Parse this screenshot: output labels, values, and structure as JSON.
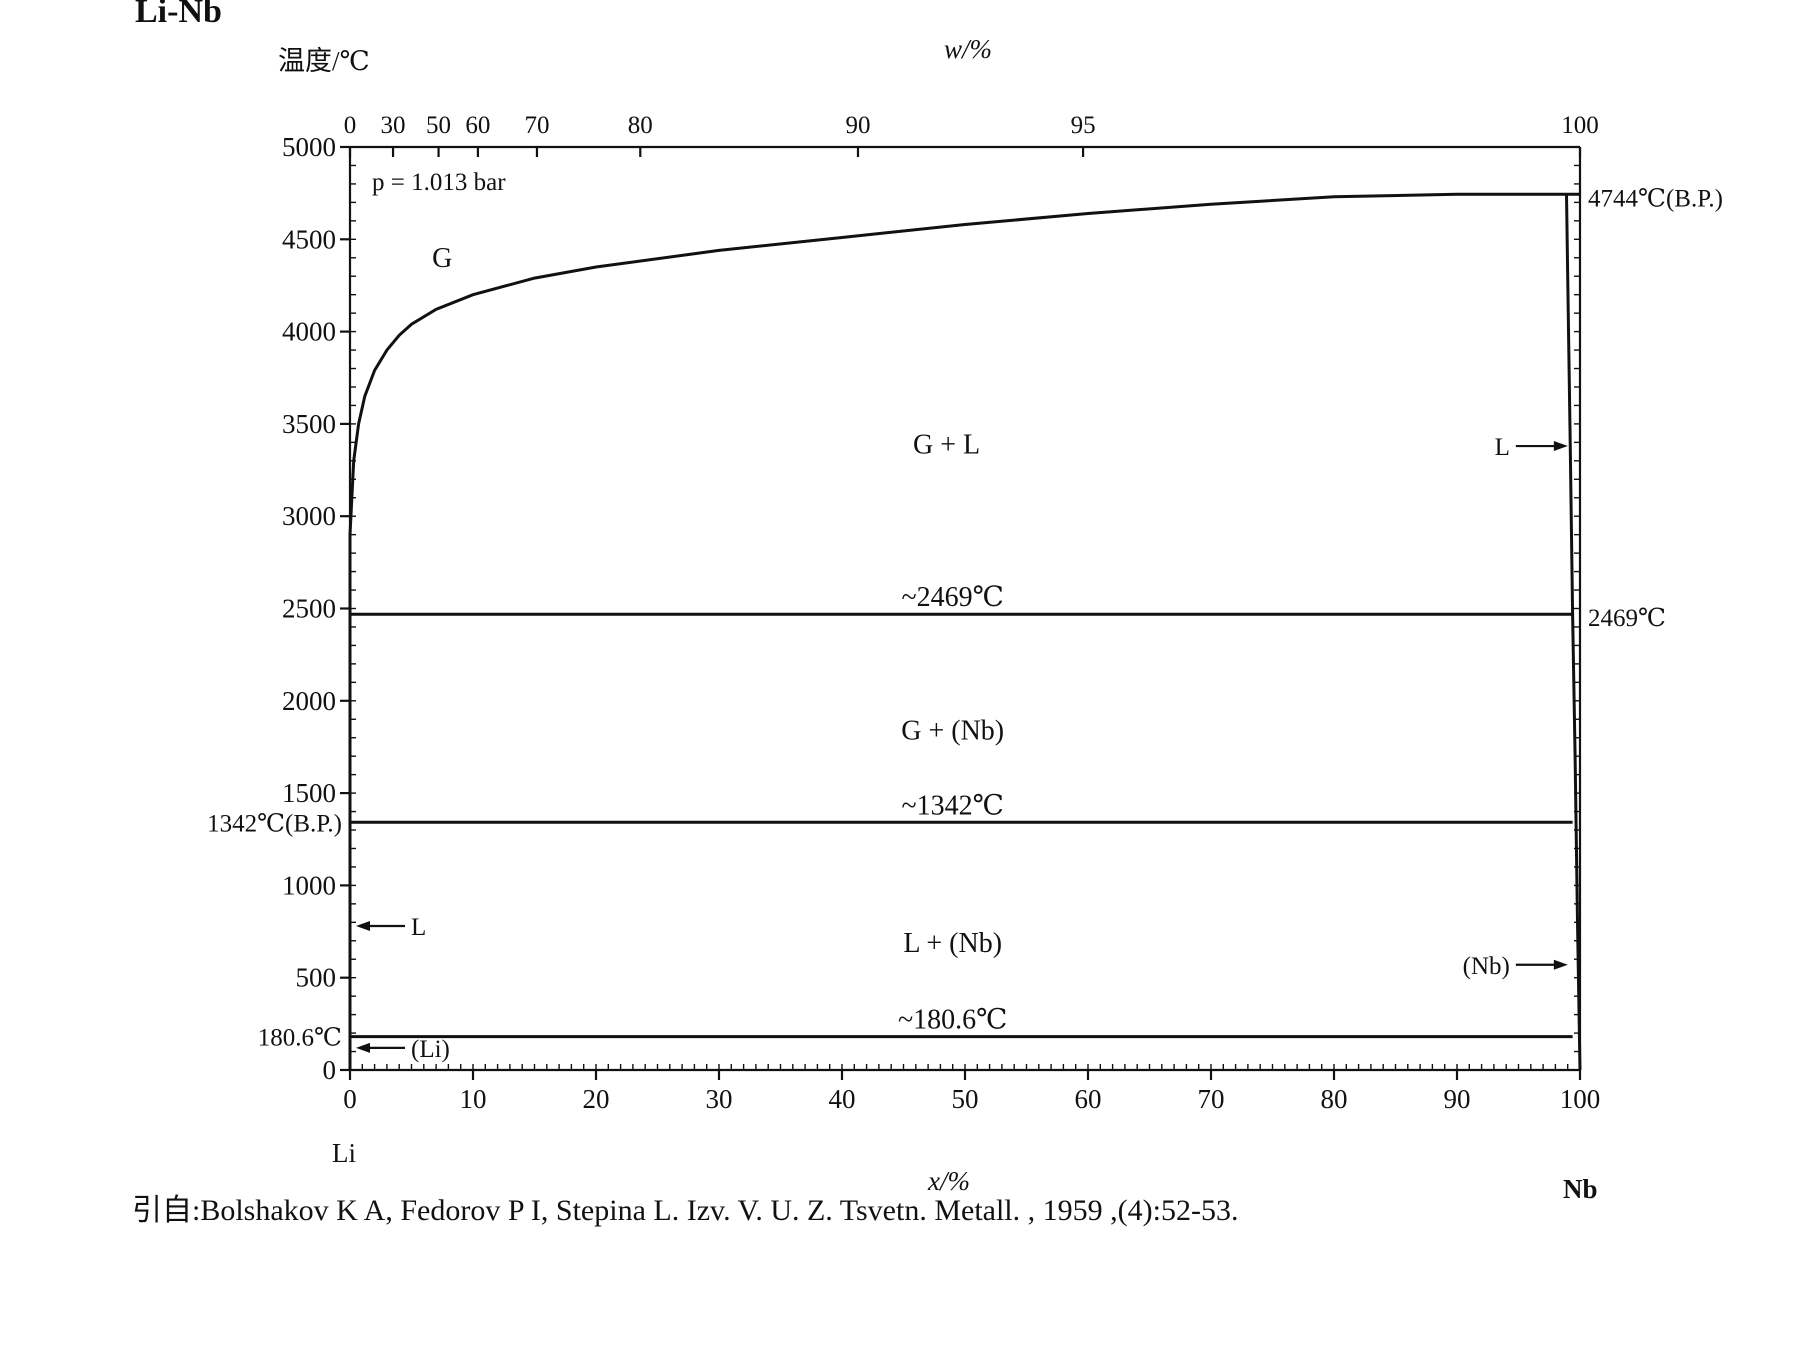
{
  "title": "Li-Nb",
  "citation": "引自:Bolshakov K A, Fedorov P I, Stepina L. Izv. V. U. Z. Tsvetn. Metall. , 1959 ,(4):52-53.",
  "chart_data": {
    "type": "phase-diagram",
    "title": "Li-Nb",
    "ylabel": "温度/℃",
    "xlabel_bottom": "x/%",
    "xlabel_top": "w/%",
    "ylim": [
      0,
      5000
    ],
    "xlim": [
      0,
      100
    ],
    "yticks": [
      0,
      500,
      1000,
      1500,
      2000,
      2500,
      3000,
      3500,
      4000,
      4500,
      5000
    ],
    "xticks_bottom": [
      0,
      10,
      20,
      30,
      40,
      50,
      60,
      70,
      80,
      90,
      100
    ],
    "xticks_top": [
      {
        "w": "0",
        "x": 0
      },
      {
        "w": "30",
        "x": 3.5
      },
      {
        "w": "50",
        "x": 7.2
      },
      {
        "w": "60",
        "x": 10.4
      },
      {
        "w": "70",
        "x": 15.2
      },
      {
        "w": "80",
        "x": 23.6
      },
      {
        "w": "90",
        "x": 41.3
      },
      {
        "w": "95",
        "x": 59.6
      },
      {
        "w": "100",
        "x": 100
      }
    ],
    "pressure": "p = 1.013 bar",
    "left_element": "Li",
    "right_element": "Nb",
    "y_special_labels": [
      {
        "text": "1342℃(B.P.)",
        "y": 1342
      },
      {
        "text": "180.6℃",
        "y": 180.6
      }
    ],
    "right_point_labels": [
      {
        "text": "4744℃(B.P.)",
        "y": 4744
      },
      {
        "text": "2469℃",
        "y": 2469
      }
    ],
    "regions": [
      {
        "label": "G",
        "x": 7.5,
        "y": 4350
      },
      {
        "label": "G + L",
        "x": 48.5,
        "y": 3340
      },
      {
        "label": "G + (Nb)",
        "x": 49,
        "y": 1790
      },
      {
        "label": "L + (Nb)",
        "x": 49,
        "y": 640
      }
    ],
    "isotherms": [
      {
        "label": "~2469℃",
        "y": 2469,
        "label_x": 49
      },
      {
        "label": "~1342℃",
        "y": 1342,
        "label_x": 49
      },
      {
        "label": "~180.6℃",
        "y": 180.6,
        "label_x": 49
      }
    ],
    "liquidus_G": {
      "x": [
        0,
        0.3,
        0.7,
        1.2,
        2,
        3,
        4,
        5,
        7,
        10,
        15,
        20,
        30,
        40,
        50,
        60,
        70,
        80,
        90,
        95,
        100
      ],
      "y": [
        2900,
        3300,
        3500,
        3650,
        3790,
        3900,
        3980,
        4040,
        4120,
        4200,
        4290,
        4350,
        4440,
        4510,
        4580,
        4640,
        4690,
        4730,
        4744,
        4744,
        4744
      ]
    },
    "nb_solvus": {
      "x": [
        100,
        99.8,
        99.6,
        99.4,
        99.2,
        99,
        98.9
      ],
      "y": [
        0,
        800,
        1700,
        2469,
        3400,
        4300,
        4744
      ]
    },
    "arrow_labels": [
      {
        "text": "L",
        "side": "left",
        "y": 780
      },
      {
        "text": "(Li)",
        "side": "left",
        "y": 120
      },
      {
        "text": "L",
        "side": "right",
        "y": 3380
      },
      {
        "text": "(Nb)",
        "side": "right",
        "y": 570
      }
    ]
  }
}
